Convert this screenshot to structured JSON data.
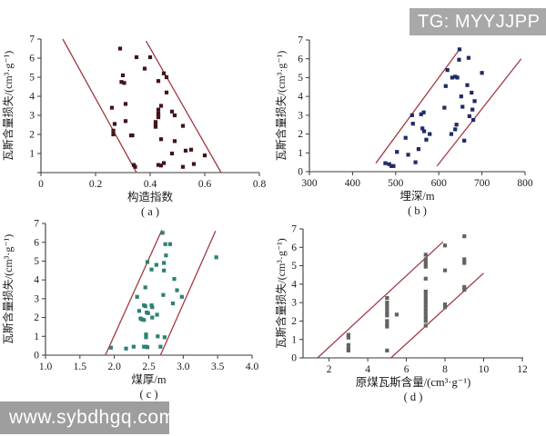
{
  "watermarks": {
    "top_right": "TG: MYYJJPP",
    "bottom_left": "www.sybdhgq.com"
  },
  "colors": {
    "marker_a": "#43141a",
    "marker_b": "#1f2a68",
    "marker_c": "#2e8174",
    "marker_d": "#636363",
    "trend_line": "#a23a41",
    "axis": "#3a3a3a",
    "text": "#1a1a1a",
    "watermark_bg": "#a8a8a8",
    "watermark_text": "#ffffff"
  },
  "chart_data": [
    {
      "type": "scatter",
      "panel": "a",
      "caption": "( a )",
      "xlabel": "构造指数",
      "ylabel": "瓦斯含量损失/(cm³·g⁻¹)",
      "xlim": [
        0,
        0.8
      ],
      "ylim": [
        0,
        7
      ],
      "xtick_vals": [
        0,
        0.2,
        0.4,
        0.6,
        0.8
      ],
      "xtick_labels": [
        "0",
        "0.2",
        "0.4",
        "0.6",
        "0.8"
      ],
      "ytick_vals": [
        0,
        1,
        2,
        3,
        4,
        5,
        6,
        7
      ],
      "ytick_labels": [
        "0",
        "1",
        "2",
        "3",
        "4",
        "5",
        "6",
        "7"
      ],
      "grid": false,
      "legend": null,
      "marker_color_key": "marker_a",
      "envelope_lines": [
        [
          [
            0.08,
            7.0
          ],
          [
            0.35,
            0.0
          ]
        ],
        [
          [
            0.385,
            6.9
          ],
          [
            0.66,
            0.0
          ]
        ]
      ],
      "points": [
        [
          0.29,
          6.5
        ],
        [
          0.35,
          6.05
        ],
        [
          0.4,
          6.05
        ],
        [
          0.38,
          5.45
        ],
        [
          0.3,
          5.1
        ],
        [
          0.295,
          4.75
        ],
        [
          0.305,
          4.7
        ],
        [
          0.45,
          5.2
        ],
        [
          0.46,
          5.0
        ],
        [
          0.43,
          4.8
        ],
        [
          0.46,
          4.2
        ],
        [
          0.31,
          3.6
        ],
        [
          0.26,
          3.4
        ],
        [
          0.44,
          3.5
        ],
        [
          0.43,
          3.3
        ],
        [
          0.48,
          3.2
        ],
        [
          0.49,
          3.0
        ],
        [
          0.43,
          3.1
        ],
        [
          0.43,
          3.0
        ],
        [
          0.43,
          2.9
        ],
        [
          0.31,
          2.7
        ],
        [
          0.27,
          2.55
        ],
        [
          0.42,
          2.65
        ],
        [
          0.42,
          2.5
        ],
        [
          0.42,
          2.4
        ],
        [
          0.265,
          2.2
        ],
        [
          0.265,
          2.0
        ],
        [
          0.33,
          1.95
        ],
        [
          0.335,
          1.95
        ],
        [
          0.52,
          2.45
        ],
        [
          0.44,
          1.75
        ],
        [
          0.49,
          1.65
        ],
        [
          0.48,
          1.0
        ],
        [
          0.53,
          1.15
        ],
        [
          0.55,
          1.2
        ],
        [
          0.6,
          0.9
        ],
        [
          0.34,
          0.4
        ],
        [
          0.345,
          0.3
        ],
        [
          0.45,
          0.5
        ],
        [
          0.43,
          0.4
        ],
        [
          0.44,
          0.37
        ],
        [
          0.52,
          0.3
        ],
        [
          0.56,
          0.45
        ]
      ]
    },
    {
      "type": "scatter",
      "panel": "b",
      "caption": "( b )",
      "xlabel": "埋深/m",
      "ylabel": "瓦斯含量损失/(cm³·g⁻¹)",
      "xlim": [
        300,
        800
      ],
      "ylim": [
        0,
        7
      ],
      "xtick_vals": [
        300,
        400,
        500,
        600,
        700,
        800
      ],
      "xtick_labels": [
        "300",
        "400",
        "500",
        "600",
        "700",
        "800"
      ],
      "ytick_vals": [
        0,
        1,
        2,
        3,
        4,
        5,
        6,
        7
      ],
      "ytick_labels": [
        "0",
        "1",
        "2",
        "3",
        "4",
        "5",
        "6",
        "7"
      ],
      "grid": false,
      "legend": null,
      "marker_color_key": "marker_b",
      "envelope_lines": [
        [
          [
            454,
            0.45
          ],
          [
            648,
            6.5
          ]
        ],
        [
          [
            596,
            0.3
          ],
          [
            791,
            6.0
          ]
        ]
      ],
      "points": [
        [
          476,
          0.45
        ],
        [
          485,
          0.4
        ],
        [
          490,
          0.3
        ],
        [
          495,
          0.3
        ],
        [
          503,
          1.05
        ],
        [
          523,
          1.8
        ],
        [
          529,
          0.9
        ],
        [
          538,
          3.0
        ],
        [
          540,
          2.55
        ],
        [
          546,
          0.5
        ],
        [
          553,
          1.2
        ],
        [
          559,
          3.05
        ],
        [
          562,
          2.3
        ],
        [
          565,
          3.15
        ],
        [
          566,
          2.15
        ],
        [
          571,
          1.7
        ],
        [
          579,
          2.0
        ],
        [
          613,
          3.4
        ],
        [
          616,
          4.55
        ],
        [
          620,
          5.4
        ],
        [
          629,
          2.0
        ],
        [
          631,
          5.0
        ],
        [
          638,
          5.05
        ],
        [
          638,
          2.25
        ],
        [
          641,
          2.5
        ],
        [
          643,
          5.0
        ],
        [
          647,
          5.95
        ],
        [
          648,
          6.5
        ],
        [
          652,
          4.0
        ],
        [
          655,
          3.45
        ],
        [
          659,
          1.65
        ],
        [
          666,
          4.6
        ],
        [
          669,
          6.05
        ],
        [
          671,
          2.95
        ],
        [
          676,
          4.2
        ],
        [
          678,
          3.3
        ],
        [
          680,
          2.75
        ],
        [
          683,
          3.75
        ],
        [
          700,
          5.25
        ]
      ]
    },
    {
      "type": "scatter",
      "panel": "c",
      "caption": "( c )",
      "xlabel": "煤厚/m",
      "ylabel": "瓦斯含量损失/(cm³·g⁻¹)",
      "xlim": [
        1.0,
        4.0
      ],
      "ylim": [
        0,
        7
      ],
      "xtick_vals": [
        1.0,
        1.5,
        2.0,
        2.5,
        3.0,
        3.5,
        4.0
      ],
      "xtick_labels": [
        "1.0",
        "1.5",
        "2.0",
        "2.5",
        "3.0",
        "3.5",
        "4.0"
      ],
      "ytick_vals": [
        0,
        1,
        2,
        3,
        4,
        5,
        6,
        7
      ],
      "ytick_labels": [
        "0",
        "1",
        "2",
        "3",
        "4",
        "5",
        "6",
        "7"
      ],
      "grid": false,
      "legend": null,
      "marker_color_key": "marker_c",
      "envelope_lines": [
        [
          [
            1.87,
            0.0
          ],
          [
            2.69,
            6.65
          ]
        ],
        [
          [
            2.67,
            0.0
          ],
          [
            3.47,
            6.6
          ]
        ]
      ],
      "points": [
        [
          1.95,
          0.4
        ],
        [
          2.17,
          0.35
        ],
        [
          2.28,
          0.45
        ],
        [
          2.33,
          3.1
        ],
        [
          2.36,
          2.35
        ],
        [
          2.38,
          1.95
        ],
        [
          2.4,
          1.9
        ],
        [
          2.43,
          1.87
        ],
        [
          2.43,
          2.65
        ],
        [
          2.45,
          2.6
        ],
        [
          2.45,
          3.6
        ],
        [
          2.43,
          0.45
        ],
        [
          2.46,
          0.45
        ],
        [
          2.48,
          0.42
        ],
        [
          2.46,
          1.1
        ],
        [
          2.46,
          0.95
        ],
        [
          2.47,
          2.27
        ],
        [
          2.49,
          2.23
        ],
        [
          2.48,
          4.95
        ],
        [
          2.54,
          4.55
        ],
        [
          2.54,
          2.65
        ],
        [
          2.55,
          2.55
        ],
        [
          2.55,
          2.0
        ],
        [
          2.61,
          4.8
        ],
        [
          2.62,
          2.15
        ],
        [
          2.63,
          1.0
        ],
        [
          2.67,
          0.45
        ],
        [
          2.7,
          6.5
        ],
        [
          2.71,
          3.2
        ],
        [
          2.72,
          4.9
        ],
        [
          2.72,
          4.5
        ],
        [
          2.73,
          0.95
        ],
        [
          2.74,
          5.9
        ],
        [
          2.81,
          5.9
        ],
        [
          2.75,
          5.3
        ],
        [
          2.85,
          2.75
        ],
        [
          2.87,
          4.05
        ],
        [
          2.91,
          3.45
        ],
        [
          2.98,
          3.1
        ],
        [
          3.48,
          5.2
        ]
      ]
    },
    {
      "type": "scatter",
      "panel": "d",
      "caption": "( d )",
      "xlabel": "原煤瓦斯含量/(cm³·g⁻¹)",
      "ylabel": "瓦斯含量损失/(cm³·g⁻¹)",
      "xlim": [
        0.65,
        12.05
      ],
      "ylim": [
        0,
        7
      ],
      "xtick_vals": [
        2,
        4,
        6,
        8,
        10,
        12
      ],
      "xtick_labels": [
        "2",
        "4",
        "6",
        "8",
        "10",
        "12"
      ],
      "ytick_vals": [
        0,
        1,
        2,
        3,
        4,
        5,
        6,
        7
      ],
      "ytick_labels": [
        "0",
        "1",
        "2",
        "3",
        "4",
        "5",
        "6",
        "7"
      ],
      "grid": false,
      "legend": null,
      "marker_color_key": "marker_d",
      "envelope_lines": [
        [
          [
            1.4,
            0.0
          ],
          [
            7.9,
            6.3
          ]
        ],
        [
          [
            5.2,
            0.0
          ],
          [
            10.0,
            4.6
          ]
        ]
      ],
      "points": [
        [
          3,
          1.25
        ],
        [
          3,
          1.1
        ],
        [
          3,
          0.7
        ],
        [
          3,
          0.5
        ],
        [
          3,
          0.4
        ],
        [
          5,
          3.25
        ],
        [
          5,
          3.0
        ],
        [
          5,
          2.85
        ],
        [
          5,
          2.65
        ],
        [
          5,
          2.45
        ],
        [
          5,
          2.3
        ],
        [
          5,
          2.0
        ],
        [
          5,
          1.8
        ],
        [
          5,
          1.7
        ],
        [
          5,
          0.4
        ],
        [
          5.5,
          2.35
        ],
        [
          7,
          5.6
        ],
        [
          7,
          5.35
        ],
        [
          7,
          5.15
        ],
        [
          7,
          4.95
        ],
        [
          7,
          4.3
        ],
        [
          7,
          3.6
        ],
        [
          7,
          3.4
        ],
        [
          7,
          3.2
        ],
        [
          7,
          3.0
        ],
        [
          7,
          2.8
        ],
        [
          7,
          2.6
        ],
        [
          7,
          2.4
        ],
        [
          7,
          2.2
        ],
        [
          7,
          2.0
        ],
        [
          7,
          1.75
        ],
        [
          8,
          6.1
        ],
        [
          8,
          4.75
        ],
        [
          8,
          2.9
        ],
        [
          8,
          2.75
        ],
        [
          9,
          6.6
        ],
        [
          9,
          5.35
        ],
        [
          9,
          5.15
        ],
        [
          9,
          3.85
        ],
        [
          9,
          3.7
        ]
      ]
    }
  ]
}
